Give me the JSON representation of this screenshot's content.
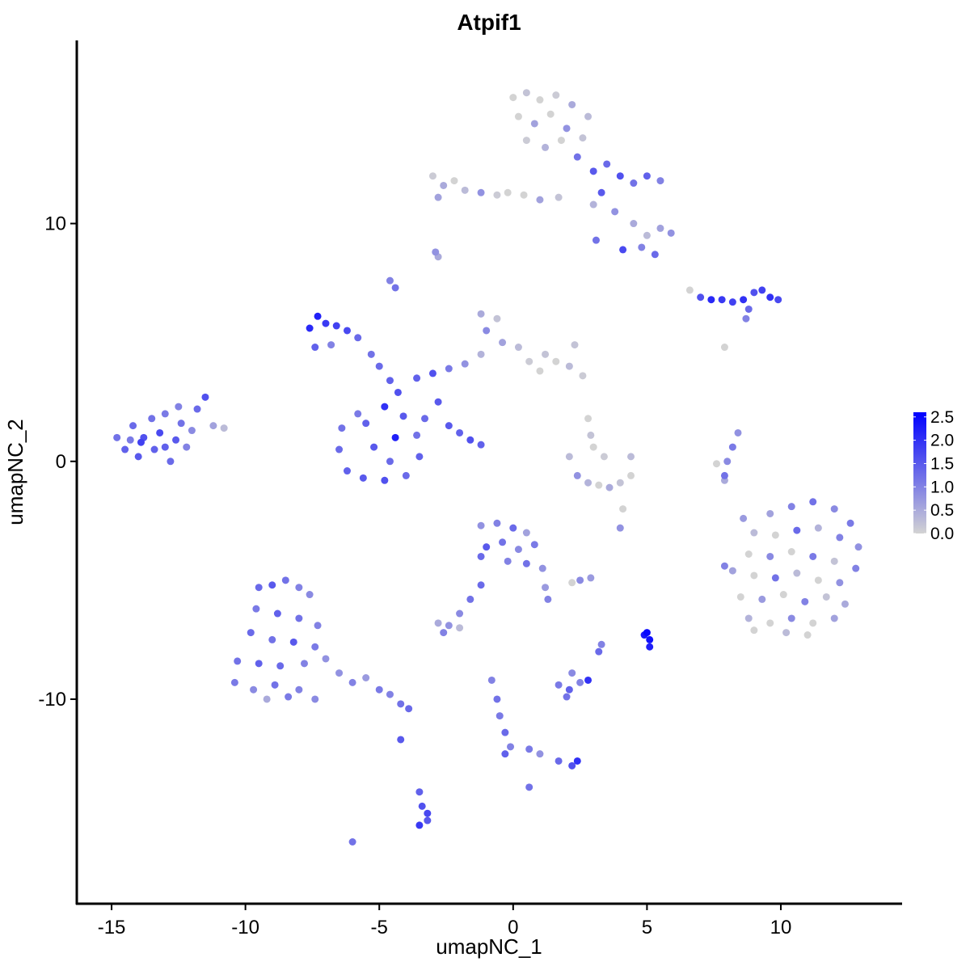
{
  "chart_data": {
    "type": "scatter",
    "title": "Atpif1",
    "xlabel": "umapNC_1",
    "ylabel": "umapNC_2",
    "xlim": [
      -16.3,
      14.5
    ],
    "ylim": [
      -18.6,
      17.7
    ],
    "xticks": [
      -15,
      -10,
      -5,
      0,
      5,
      10
    ],
    "xtick_labels": [
      "-15",
      "-10",
      "-5",
      "0",
      "5",
      "10"
    ],
    "yticks": [
      -10,
      0,
      10
    ],
    "ytick_labels": [
      "-10",
      "0",
      "10"
    ],
    "grid": false,
    "legend": {
      "placement": "right",
      "type": "colorbar",
      "ticks": [
        0,
        0.5,
        1,
        1.5,
        2,
        2.5
      ],
      "tick_labels": [
        "0.0",
        "0.5",
        "1.0",
        "1.5",
        "2.0",
        "2.5"
      ],
      "range": [
        0,
        2.6
      ],
      "low_color": "#D3D3D3",
      "high_color": "#0000FF"
    },
    "point_format": [
      "x",
      "y",
      "expression"
    ],
    "points": [
      [
        -14.8,
        1.0,
        1.2
      ],
      [
        -14.5,
        0.5,
        1.4
      ],
      [
        -14.2,
        1.5,
        1.3
      ],
      [
        -14.0,
        0.2,
        1.5
      ],
      [
        -13.8,
        1.0,
        1.6
      ],
      [
        -13.5,
        1.8,
        1.2
      ],
      [
        -13.4,
        0.5,
        1.4
      ],
      [
        -13.2,
        1.2,
        1.7
      ],
      [
        -13.0,
        2.0,
        1.1
      ],
      [
        -12.8,
        0.0,
        1.3
      ],
      [
        -12.6,
        0.9,
        1.5
      ],
      [
        -12.4,
        1.6,
        1.2
      ],
      [
        -12.2,
        0.6,
        1.0
      ],
      [
        -12.0,
        1.3,
        0.9
      ],
      [
        -11.8,
        2.2,
        1.3
      ],
      [
        -11.5,
        2.7,
        1.6
      ],
      [
        -11.2,
        1.5,
        0.6
      ],
      [
        -10.8,
        1.4,
        0.3
      ],
      [
        -13.9,
        0.8,
        1.8
      ],
      [
        -13.0,
        0.6,
        1.4
      ],
      [
        -12.5,
        2.3,
        1.0
      ],
      [
        -14.3,
        0.9,
        1.1
      ],
      [
        -9.5,
        -5.3,
        1.3
      ],
      [
        -9.0,
        -5.2,
        1.5
      ],
      [
        -8.5,
        -5.0,
        1.2
      ],
      [
        -8.0,
        -5.3,
        1.0
      ],
      [
        -7.6,
        -5.6,
        0.9
      ],
      [
        -9.6,
        -6.2,
        1.1
      ],
      [
        -8.8,
        -6.4,
        1.4
      ],
      [
        -8.0,
        -6.6,
        1.2
      ],
      [
        -7.3,
        -6.9,
        1.0
      ],
      [
        -9.8,
        -7.2,
        1.3
      ],
      [
        -9.0,
        -7.5,
        1.2
      ],
      [
        -8.2,
        -7.6,
        1.5
      ],
      [
        -7.4,
        -7.8,
        1.1
      ],
      [
        -10.3,
        -8.4,
        1.2
      ],
      [
        -9.5,
        -8.5,
        1.4
      ],
      [
        -8.7,
        -8.6,
        1.3
      ],
      [
        -7.8,
        -8.5,
        1.0
      ],
      [
        -7.0,
        -8.3,
        0.8
      ],
      [
        -10.4,
        -9.3,
        1.1
      ],
      [
        -9.7,
        -9.6,
        0.9
      ],
      [
        -8.9,
        -9.4,
        1.2
      ],
      [
        -8.0,
        -9.6,
        1.0
      ],
      [
        -7.4,
        -10.0,
        0.9
      ],
      [
        -6.5,
        -8.9,
        0.8
      ],
      [
        -6.0,
        -9.3,
        1.0
      ],
      [
        -5.5,
        -9.1,
        0.7
      ],
      [
        -5.0,
        -9.6,
        1.1
      ],
      [
        -4.6,
        -9.8,
        1.0
      ],
      [
        -4.2,
        -10.2,
        1.2
      ],
      [
        -3.9,
        -10.4,
        1.3
      ],
      [
        -9.2,
        -10.0,
        0.5
      ],
      [
        -8.4,
        -9.9,
        1.1
      ],
      [
        -6.4,
        1.4,
        1.2
      ],
      [
        -6.5,
        0.5,
        1.3
      ],
      [
        -6.2,
        -0.4,
        1.4
      ],
      [
        -5.6,
        -0.7,
        1.5
      ],
      [
        -4.8,
        -0.8,
        1.6
      ],
      [
        -4.0,
        -0.6,
        1.3
      ],
      [
        -3.5,
        0.2,
        1.4
      ],
      [
        -3.6,
        1.1,
        1.2
      ],
      [
        -4.1,
        1.9,
        1.5
      ],
      [
        -4.8,
        2.3,
        2.0
      ],
      [
        -5.5,
        1.6,
        1.4
      ],
      [
        -5.2,
        0.6,
        1.5
      ],
      [
        -4.4,
        1.0,
        2.2
      ],
      [
        -4.6,
        0.0,
        1.3
      ],
      [
        -5.8,
        2.0,
        1.1
      ],
      [
        -7.6,
        5.6,
        2.1
      ],
      [
        -7.3,
        6.1,
        2.2
      ],
      [
        -7.0,
        5.8,
        1.9
      ],
      [
        -6.6,
        5.7,
        1.8
      ],
      [
        -6.2,
        5.5,
        1.7
      ],
      [
        -5.8,
        5.2,
        1.3
      ],
      [
        -7.4,
        4.8,
        1.4
      ],
      [
        -5.3,
        4.5,
        1.2
      ],
      [
        -5.0,
        4.0,
        1.3
      ],
      [
        -4.6,
        3.4,
        1.4
      ],
      [
        -4.3,
        2.9,
        1.6
      ],
      [
        -6.8,
        4.9,
        1.0
      ],
      [
        -3.6,
        3.5,
        1.4
      ],
      [
        -3.0,
        3.7,
        1.6
      ],
      [
        -2.4,
        3.9,
        1.1
      ],
      [
        -1.8,
        4.1,
        0.8
      ],
      [
        -1.2,
        4.5,
        0.4
      ],
      [
        -1.0,
        5.5,
        0.9
      ],
      [
        -1.2,
        6.2,
        0.5
      ],
      [
        -0.6,
        6.0,
        0.2
      ],
      [
        -0.4,
        5.0,
        0.6
      ],
      [
        0.2,
        4.8,
        0.3
      ],
      [
        0.6,
        4.2,
        0.1
      ],
      [
        1.2,
        4.5,
        0.2
      ],
      [
        1.6,
        4.2,
        0.0
      ],
      [
        2.1,
        4.0,
        0.3
      ],
      [
        2.6,
        3.6,
        0.1
      ],
      [
        1.0,
        3.8,
        0.0
      ],
      [
        2.3,
        4.9,
        0.2
      ],
      [
        -2.8,
        2.5,
        1.5
      ],
      [
        -3.3,
        1.8,
        1.3
      ],
      [
        -2.4,
        1.5,
        1.5
      ],
      [
        -2.0,
        1.2,
        1.4
      ],
      [
        -1.6,
        0.9,
        1.6
      ],
      [
        -1.2,
        0.7,
        1.4
      ],
      [
        -4.6,
        7.6,
        1.0
      ],
      [
        -4.4,
        7.3,
        1.2
      ],
      [
        -2.8,
        8.6,
        0.5
      ],
      [
        -2.9,
        8.8,
        0.8
      ],
      [
        0.0,
        15.3,
        0.0
      ],
      [
        0.5,
        15.5,
        0.2
      ],
      [
        1.0,
        15.2,
        0.0
      ],
      [
        1.6,
        15.4,
        0.1
      ],
      [
        2.2,
        15.0,
        0.5
      ],
      [
        2.8,
        14.5,
        0.3
      ],
      [
        0.2,
        14.5,
        0.0
      ],
      [
        0.8,
        14.2,
        0.6
      ],
      [
        1.4,
        14.6,
        0.0
      ],
      [
        2.0,
        14.0,
        0.8
      ],
      [
        2.6,
        13.6,
        0.2
      ],
      [
        0.5,
        13.5,
        0.1
      ],
      [
        1.2,
        13.2,
        0.4
      ],
      [
        1.8,
        13.5,
        0.0
      ],
      [
        2.4,
        12.8,
        1.2
      ],
      [
        3.0,
        12.2,
        1.5
      ],
      [
        3.5,
        12.5,
        1.3
      ],
      [
        4.0,
        12.0,
        1.6
      ],
      [
        4.5,
        11.7,
        1.2
      ],
      [
        5.0,
        12.0,
        1.4
      ],
      [
        5.5,
        11.8,
        1.0
      ],
      [
        3.3,
        11.3,
        1.5
      ],
      [
        3.8,
        10.5,
        0.8
      ],
      [
        4.5,
        10.0,
        0.5
      ],
      [
        5.0,
        9.5,
        0.3
      ],
      [
        5.5,
        9.8,
        0.6
      ],
      [
        5.9,
        9.6,
        0.8
      ],
      [
        4.8,
        9.0,
        1.0
      ],
      [
        5.3,
        8.7,
        1.3
      ],
      [
        3.0,
        10.8,
        0.4
      ],
      [
        4.1,
        8.9,
        1.7
      ],
      [
        3.1,
        9.3,
        1.2
      ],
      [
        -3.0,
        12.0,
        0.1
      ],
      [
        -2.6,
        11.6,
        0.5
      ],
      [
        -2.2,
        11.8,
        0.0
      ],
      [
        -1.8,
        11.4,
        0.3
      ],
      [
        -1.2,
        11.3,
        0.8
      ],
      [
        -0.6,
        11.2,
        0.1
      ],
      [
        0.4,
        11.2,
        0.0
      ],
      [
        1.0,
        11.0,
        0.6
      ],
      [
        1.7,
        11.1,
        0.2
      ],
      [
        -2.8,
        11.1,
        0.6
      ],
      [
        -0.2,
        11.3,
        0.0
      ],
      [
        6.6,
        7.2,
        0.0
      ],
      [
        7.0,
        6.9,
        1.6
      ],
      [
        7.4,
        6.8,
        2.1
      ],
      [
        7.8,
        6.8,
        1.9
      ],
      [
        8.2,
        6.7,
        1.8
      ],
      [
        8.6,
        6.8,
        2.0
      ],
      [
        9.0,
        7.1,
        1.6
      ],
      [
        9.3,
        7.2,
        1.8
      ],
      [
        9.6,
        6.9,
        2.0
      ],
      [
        9.9,
        6.8,
        1.7
      ],
      [
        8.8,
        6.4,
        1.3
      ],
      [
        8.7,
        6.0,
        1.0
      ],
      [
        7.9,
        4.8,
        0.0
      ],
      [
        9.6,
        -2.2,
        0.6
      ],
      [
        10.4,
        -1.9,
        1.0
      ],
      [
        11.2,
        -1.7,
        1.2
      ],
      [
        12.0,
        -2.0,
        0.9
      ],
      [
        12.6,
        -2.6,
        1.1
      ],
      [
        9.0,
        -3.0,
        0.3
      ],
      [
        9.8,
        -3.1,
        0.0
      ],
      [
        10.6,
        -2.9,
        1.3
      ],
      [
        11.4,
        -2.8,
        0.4
      ],
      [
        12.2,
        -3.2,
        1.0
      ],
      [
        12.9,
        -3.6,
        0.8
      ],
      [
        8.8,
        -3.9,
        0.0
      ],
      [
        9.6,
        -4.0,
        0.9
      ],
      [
        10.4,
        -3.8,
        0.0
      ],
      [
        11.2,
        -4.0,
        1.1
      ],
      [
        12.0,
        -4.2,
        0.2
      ],
      [
        12.8,
        -4.5,
        1.0
      ],
      [
        8.2,
        -4.6,
        0.6
      ],
      [
        9.0,
        -4.8,
        0.0
      ],
      [
        9.8,
        -4.9,
        1.2
      ],
      [
        10.6,
        -4.7,
        0.3
      ],
      [
        11.4,
        -5.0,
        0.0
      ],
      [
        12.2,
        -5.1,
        0.8
      ],
      [
        8.5,
        -5.7,
        0.0
      ],
      [
        9.3,
        -5.8,
        0.7
      ],
      [
        10.1,
        -5.6,
        0.0
      ],
      [
        10.9,
        -5.9,
        1.0
      ],
      [
        11.7,
        -5.7,
        0.2
      ],
      [
        12.4,
        -6.0,
        0.5
      ],
      [
        8.8,
        -6.6,
        0.4
      ],
      [
        9.6,
        -6.8,
        0.0
      ],
      [
        10.4,
        -6.6,
        0.9
      ],
      [
        11.2,
        -6.8,
        0.0
      ],
      [
        12.0,
        -6.6,
        0.6
      ],
      [
        9.0,
        -7.1,
        0.0
      ],
      [
        10.2,
        -7.2,
        0.3
      ],
      [
        11.0,
        -7.3,
        0.0
      ],
      [
        7.9,
        -4.4,
        1.0
      ],
      [
        8.6,
        -2.4,
        0.7
      ],
      [
        2.1,
        0.2,
        0.3
      ],
      [
        2.4,
        -0.6,
        0.8
      ],
      [
        2.8,
        -0.9,
        0.4
      ],
      [
        3.2,
        -1.0,
        0.0
      ],
      [
        3.6,
        -1.1,
        0.5
      ],
      [
        4.0,
        -0.9,
        0.2
      ],
      [
        4.4,
        -0.6,
        0.0
      ],
      [
        3.0,
        0.6,
        0.0
      ],
      [
        3.4,
        0.2,
        0.1
      ],
      [
        2.9,
        1.1,
        0.2
      ],
      [
        4.4,
        0.2,
        0.3
      ],
      [
        2.8,
        1.8,
        0.0
      ],
      [
        4.1,
        -2.0,
        0.0
      ],
      [
        4.0,
        -2.8,
        0.8
      ],
      [
        -1.2,
        -2.7,
        0.8
      ],
      [
        -0.6,
        -2.6,
        1.0
      ],
      [
        0.0,
        -2.8,
        1.3
      ],
      [
        0.5,
        -3.0,
        0.6
      ],
      [
        -1.0,
        -3.6,
        1.5
      ],
      [
        -0.4,
        -3.4,
        1.2
      ],
      [
        0.2,
        -3.7,
        0.9
      ],
      [
        0.8,
        -3.5,
        1.1
      ],
      [
        -1.2,
        -4.0,
        1.3
      ],
      [
        -0.2,
        -4.2,
        1.0
      ],
      [
        0.5,
        -4.3,
        1.2
      ],
      [
        1.1,
        -4.5,
        0.8
      ],
      [
        1.2,
        -5.3,
        0.7
      ],
      [
        1.3,
        -5.8,
        1.0
      ],
      [
        -1.2,
        -5.2,
        1.3
      ],
      [
        -1.6,
        -5.8,
        1.2
      ],
      [
        -2.0,
        -6.4,
        0.9
      ],
      [
        2.5,
        -5.0,
        0.9
      ],
      [
        2.9,
        -4.9,
        0.7
      ],
      [
        2.2,
        -5.1,
        0.0
      ],
      [
        5.0,
        -7.2,
        2.5
      ],
      [
        5.1,
        -7.5,
        2.4
      ],
      [
        4.9,
        -7.3,
        2.3
      ],
      [
        5.1,
        -7.8,
        2.2
      ],
      [
        3.3,
        -7.7,
        1.0
      ],
      [
        3.2,
        -8.0,
        1.3
      ],
      [
        -2.8,
        -6.8,
        0.5
      ],
      [
        -2.4,
        -6.9,
        0.8
      ],
      [
        -2.0,
        -7.0,
        0.3
      ],
      [
        -2.6,
        -7.2,
        1.0
      ],
      [
        1.7,
        -9.4,
        1.1
      ],
      [
        2.1,
        -9.6,
        1.4
      ],
      [
        2.5,
        -9.3,
        1.0
      ],
      [
        2.2,
        -8.9,
        0.9
      ],
      [
        2.8,
        -9.2,
        2.0
      ],
      [
        2.0,
        -9.9,
        1.2
      ],
      [
        -0.8,
        -9.2,
        1.0
      ],
      [
        -0.6,
        -10.0,
        1.2
      ],
      [
        -0.5,
        -10.7,
        1.1
      ],
      [
        -0.3,
        -11.4,
        1.3
      ],
      [
        -0.1,
        -12.0,
        1.0
      ],
      [
        -0.3,
        -12.3,
        1.4
      ],
      [
        0.6,
        -12.1,
        1.1
      ],
      [
        1.0,
        -12.3,
        0.8
      ],
      [
        1.7,
        -12.6,
        1.3
      ],
      [
        2.2,
        -12.8,
        1.6
      ],
      [
        2.4,
        -12.6,
        2.0
      ],
      [
        0.6,
        -13.7,
        1.2
      ],
      [
        -3.5,
        -13.9,
        1.4
      ],
      [
        -3.4,
        -14.5,
        1.6
      ],
      [
        -3.2,
        -15.1,
        1.5
      ],
      [
        -3.5,
        -15.3,
        1.9
      ],
      [
        -3.2,
        -14.8,
        1.7
      ],
      [
        -6.0,
        -16.0,
        1.2
      ],
      [
        -4.2,
        -11.7,
        1.5
      ],
      [
        8.4,
        1.2,
        0.8
      ],
      [
        8.2,
        0.6,
        1.1
      ],
      [
        8.0,
        0.0,
        0.9
      ],
      [
        7.9,
        -0.6,
        1.2
      ],
      [
        7.9,
        -0.8,
        0.5
      ],
      [
        7.6,
        -0.1,
        0.0
      ]
    ]
  }
}
